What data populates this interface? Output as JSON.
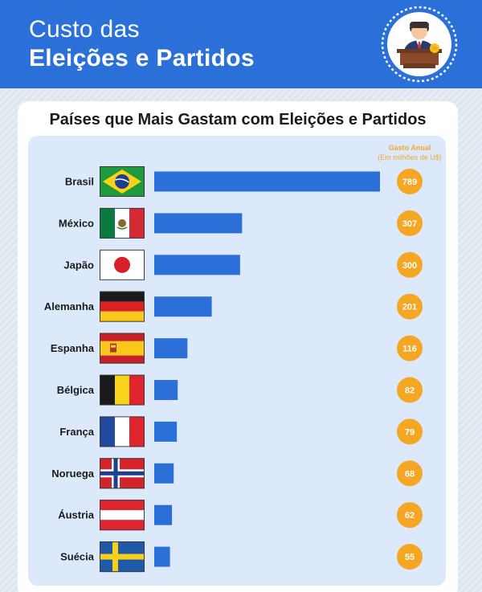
{
  "header": {
    "title_line1": "Custo das",
    "title_line2": "Eleições e Partidos",
    "logo": "politician-at-podium-icon"
  },
  "colors": {
    "header_bg": "#2b6fd9",
    "bar": "#2b6fd9",
    "badge": "#f5a623",
    "panel_bg": "#dce9fb"
  },
  "chart_data": {
    "type": "bar",
    "title": "Países que Mais Gastam com Eleições e Partidos",
    "value_header": "Gasto Anual",
    "value_unit": "(Em milhões de U$)",
    "categories": [
      "Brasil",
      "México",
      "Japão",
      "Alemanha",
      "Espanha",
      "Bélgica",
      "França",
      "Noruega",
      "Áustria",
      "Suécia"
    ],
    "values": [
      789,
      307,
      300,
      201,
      116,
      82,
      79,
      68,
      62,
      55
    ],
    "flags": [
      "brazil-flag-icon",
      "mexico-flag-icon",
      "japan-flag-icon",
      "germany-flag-icon",
      "spain-flag-icon",
      "belgium-flag-icon",
      "france-flag-icon",
      "norway-flag-icon",
      "austria-flag-icon",
      "sweden-flag-icon"
    ],
    "xlim": [
      0,
      789
    ],
    "orientation": "horizontal"
  }
}
